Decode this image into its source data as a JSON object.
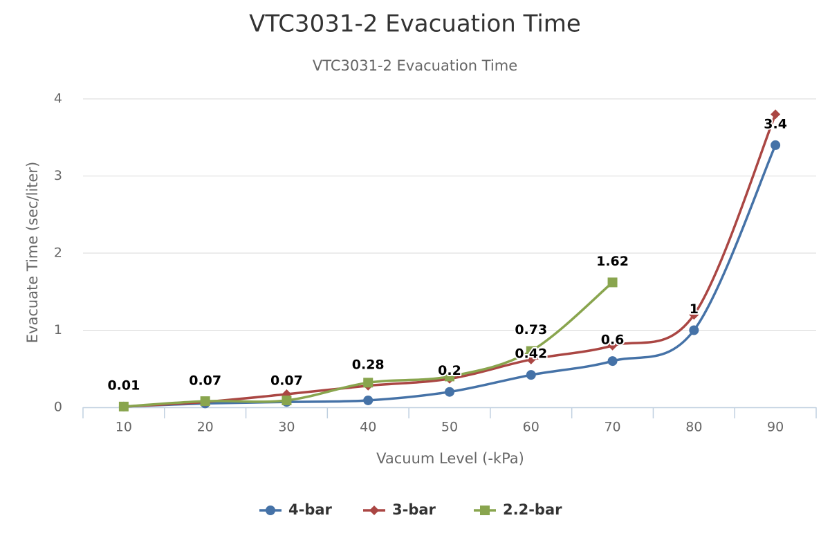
{
  "chart_data": {
    "type": "line",
    "title": "VTC3031-2 Evacuation Time",
    "subtitle": "VTC3031-2 Evacuation Time",
    "x_label": "Vacuum Level (-kPa)",
    "y_label": "Evacuate Time (sec/liter)",
    "categories": [
      "10",
      "20",
      "30",
      "40",
      "50",
      "60",
      "70",
      "80",
      "90"
    ],
    "series": [
      {
        "name": "4-bar",
        "color": "#4572a7",
        "marker": "circle",
        "values": [
          0.01,
          0.05,
          0.07,
          0.09,
          0.2,
          0.42,
          0.6,
          1,
          3.4
        ],
        "value_labels": [
          "0.01",
          null,
          "0.07",
          null,
          "0.2",
          "0.42",
          "0.6",
          "1",
          "3.4"
        ]
      },
      {
        "name": "3-bar",
        "color": "#aa4643",
        "marker": "diamond",
        "values": [
          0.01,
          0.07,
          0.17,
          0.28,
          0.37,
          0.62,
          0.8,
          1.2,
          3.8
        ],
        "value_labels": [
          null,
          "0.07",
          null,
          "0.28",
          null,
          null,
          null,
          null,
          null
        ]
      },
      {
        "name": "2.2-bar",
        "color": "#89a54e",
        "marker": "square",
        "values": [
          0.01,
          0.08,
          0.09,
          0.32,
          0.4,
          0.73,
          1.62,
          null,
          null
        ],
        "value_labels": [
          null,
          null,
          null,
          null,
          null,
          "0.73",
          "1.62",
          null,
          null
        ]
      }
    ],
    "ylim": [
      0,
      4
    ],
    "yticks": [
      0,
      1,
      2,
      3,
      4
    ],
    "grid": true,
    "smooth": true,
    "legend": "bottom"
  }
}
